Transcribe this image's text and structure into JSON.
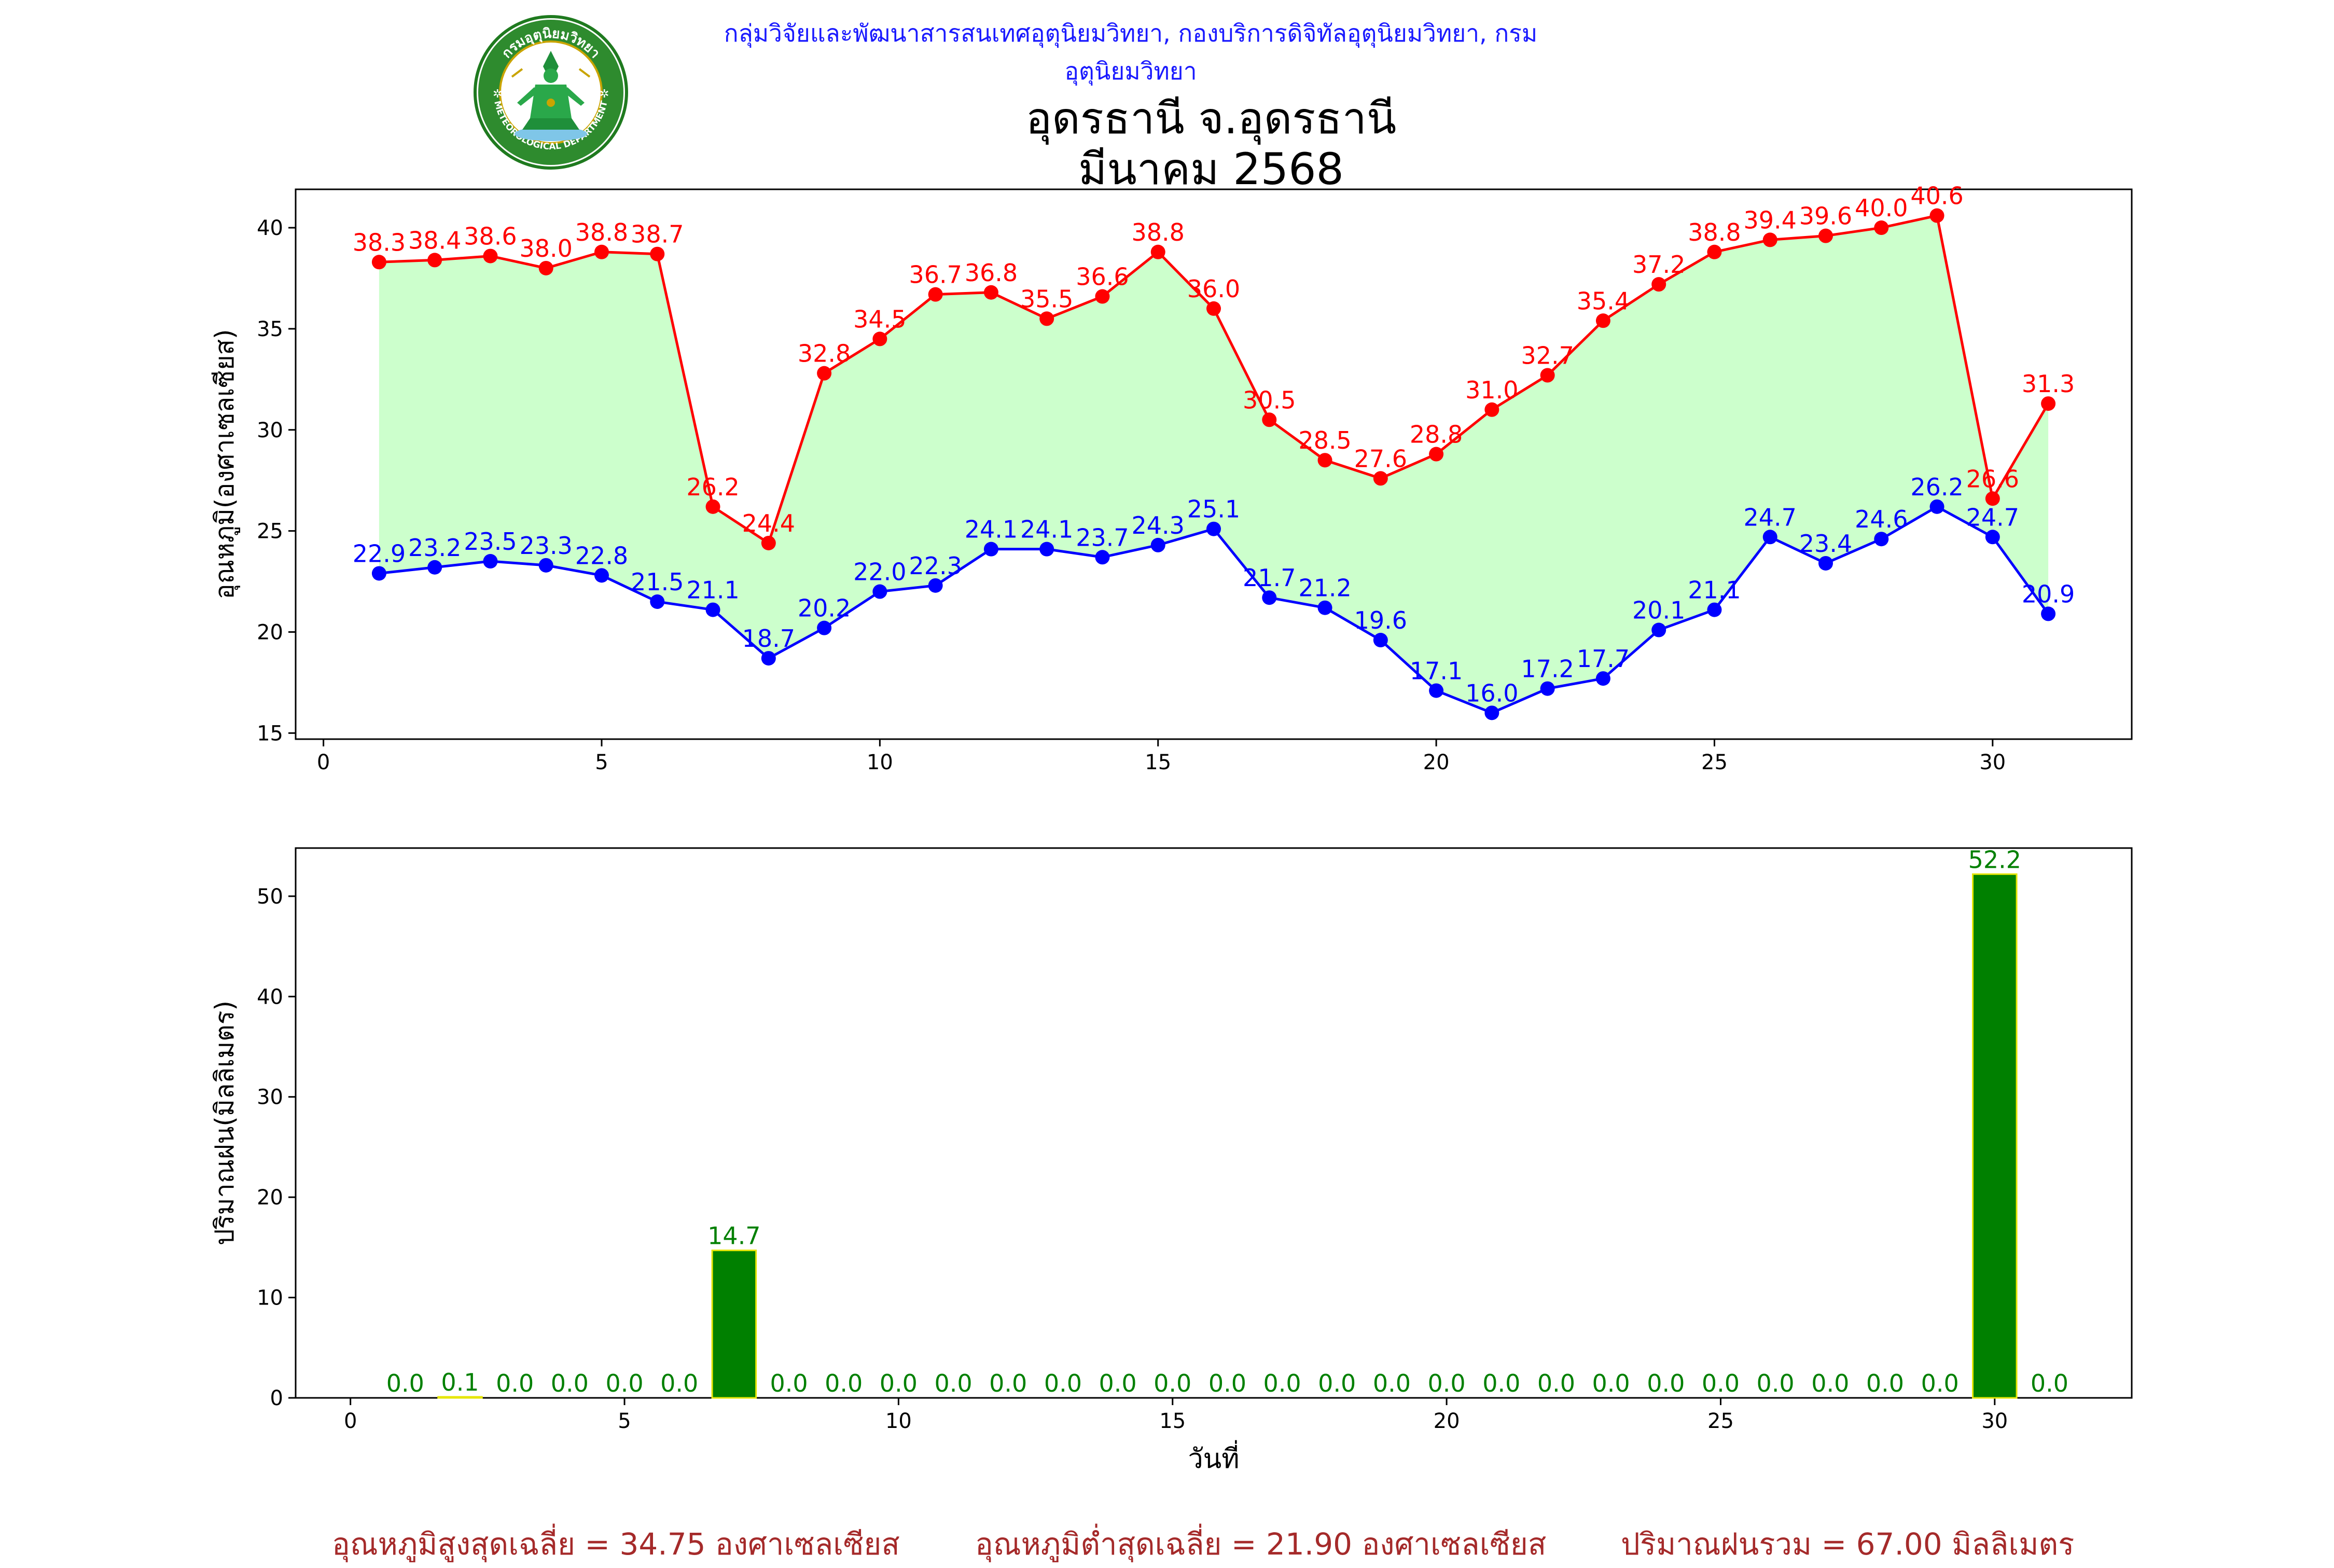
{
  "header": {
    "organization": "กลุ่มวิจัยและพัฒนาสารสนเทศอุตุนิยมวิทยา, กองบริการดิจิทัลอุตุนิยมวิทยา, กรมอุตุนิยมวิทยา",
    "title_line1": "อุดรธานี จ.อุดรธานี",
    "title_line2": "มีนาคม 2568",
    "logo_text_top": "กรมอุตุนิยมวิทยา",
    "logo_text_bottom": "METEOROLOGICAL DEPARTMENT"
  },
  "colors": {
    "max_temp": "#ff0000",
    "min_temp": "#0000ff",
    "fill": "#ccffcc",
    "rain_bar": "#008000",
    "rain_edge": "#e6e600",
    "rain_label": "#008000",
    "org_text": "#1a1aff",
    "footer_text": "#a52a2a"
  },
  "chart_data": [
    {
      "type": "line",
      "ylabel": "อุณหภูมิ(องศาเซลเซียส)",
      "xlabel": "",
      "xlim": [
        -0.5,
        32.5
      ],
      "ylim": [
        14.7,
        41.9
      ],
      "xticks": [
        0,
        5,
        10,
        15,
        20,
        25,
        30
      ],
      "yticks": [
        15,
        20,
        25,
        30,
        35,
        40
      ],
      "x": [
        1,
        2,
        3,
        4,
        5,
        6,
        7,
        8,
        9,
        10,
        11,
        12,
        13,
        14,
        15,
        16,
        17,
        18,
        19,
        20,
        21,
        22,
        23,
        24,
        25,
        26,
        27,
        28,
        29,
        30,
        31
      ],
      "series": [
        {
          "key": "max",
          "values": [
            38.3,
            38.4,
            38.6,
            38.0,
            38.8,
            38.7,
            26.2,
            24.4,
            32.8,
            34.5,
            36.7,
            36.8,
            35.5,
            36.6,
            38.8,
            36.0,
            30.5,
            28.5,
            27.6,
            28.8,
            31.0,
            32.7,
            35.4,
            37.2,
            38.8,
            39.4,
            39.6,
            40.0,
            40.6,
            26.6,
            31.3
          ]
        },
        {
          "key": "min",
          "values": [
            22.9,
            23.2,
            23.5,
            23.3,
            22.8,
            21.5,
            21.1,
            18.7,
            20.2,
            22.0,
            22.3,
            24.1,
            24.1,
            23.7,
            24.3,
            25.1,
            21.7,
            21.2,
            19.6,
            17.1,
            16.0,
            17.2,
            17.7,
            20.1,
            21.1,
            24.7,
            23.4,
            24.6,
            26.2,
            24.7,
            20.9
          ]
        }
      ],
      "grid": false,
      "legend": "none"
    },
    {
      "type": "bar",
      "ylabel": "ปริมาณฝน(มิลลิเมตร)",
      "xlabel": "วันที่",
      "xlim": [
        -1,
        32.5
      ],
      "ylim": [
        0,
        54.8
      ],
      "xticks": [
        0,
        5,
        10,
        15,
        20,
        25,
        30
      ],
      "yticks": [
        0,
        10,
        20,
        30,
        40,
        50
      ],
      "x": [
        1,
        2,
        3,
        4,
        5,
        6,
        7,
        8,
        9,
        10,
        11,
        12,
        13,
        14,
        15,
        16,
        17,
        18,
        19,
        20,
        21,
        22,
        23,
        24,
        25,
        26,
        27,
        28,
        29,
        30,
        31
      ],
      "values": [
        0.0,
        0.1,
        0.0,
        0.0,
        0.0,
        0.0,
        14.7,
        0.0,
        0.0,
        0.0,
        0.0,
        0.0,
        0.0,
        0.0,
        0.0,
        0.0,
        0.0,
        0.0,
        0.0,
        0.0,
        0.0,
        0.0,
        0.0,
        0.0,
        0.0,
        0.0,
        0.0,
        0.0,
        0.0,
        52.2,
        0.0
      ],
      "grid": false,
      "legend": "none"
    }
  ],
  "footer": {
    "avg_max": "อุณหภูมิสูงสุดเฉลี่ย = 34.75 องศาเซลเซียส",
    "avg_min": "อุณหภูมิต่ำสุดเฉลี่ย = 21.90 องศาเซลเซียส",
    "total_rain": "ปริมาณฝนรวม = 67.00 มิลลิเมตร"
  }
}
